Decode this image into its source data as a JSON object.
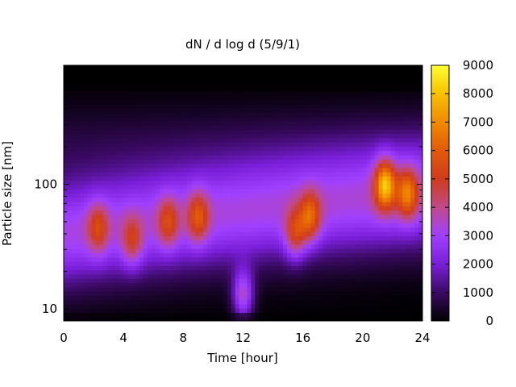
{
  "chart_data": {
    "type": "heatmap",
    "title": "dN / d log d (5/9/1)",
    "xlabel": "Time [hour]",
    "ylabel": "Particle size [nm]",
    "xlim": [
      0,
      24
    ],
    "ylim": [
      8,
      900
    ],
    "y_scale": "log",
    "x_ticks": [
      "0",
      "4",
      "8",
      "12",
      "16",
      "20",
      "24"
    ],
    "x_tick_values": [
      0,
      4,
      8,
      12,
      16,
      20,
      24
    ],
    "y_ticks": [
      "10",
      "100"
    ],
    "y_tick_values": [
      10,
      100
    ],
    "colorbar": {
      "range": [
        0,
        9000
      ],
      "ticks": [
        "0",
        "1000",
        "2000",
        "3000",
        "4000",
        "5000",
        "6000",
        "7000",
        "8000",
        "9000"
      ],
      "tick_values": [
        0,
        1000,
        2000,
        3000,
        4000,
        5000,
        6000,
        7000,
        8000,
        9000
      ],
      "colormap": [
        "#000000",
        "#3a0a63",
        "#7a1fd9",
        "#a040ff",
        "#c04a8a",
        "#d03c1c",
        "#e25a0a",
        "#f08a00",
        "#f8c000",
        "#ffff33"
      ]
    },
    "grid": false,
    "legend": "colorbar-right",
    "features": [
      {
        "time": 2.3,
        "size": 45,
        "value": 5200
      },
      {
        "time": 4.6,
        "size": 35,
        "value": 5000
      },
      {
        "time": 7.0,
        "size": 50,
        "value": 5200
      },
      {
        "time": 9.0,
        "size": 55,
        "value": 5600
      },
      {
        "time": 12.0,
        "size": 13,
        "value": 6000
      },
      {
        "time": 15.5,
        "size": 40,
        "value": 5600
      },
      {
        "time": 16.5,
        "size": 55,
        "value": 6000
      },
      {
        "time": 21.5,
        "size": 100,
        "value": 7800
      },
      {
        "time": 23.0,
        "size": 85,
        "value": 6400
      }
    ]
  }
}
